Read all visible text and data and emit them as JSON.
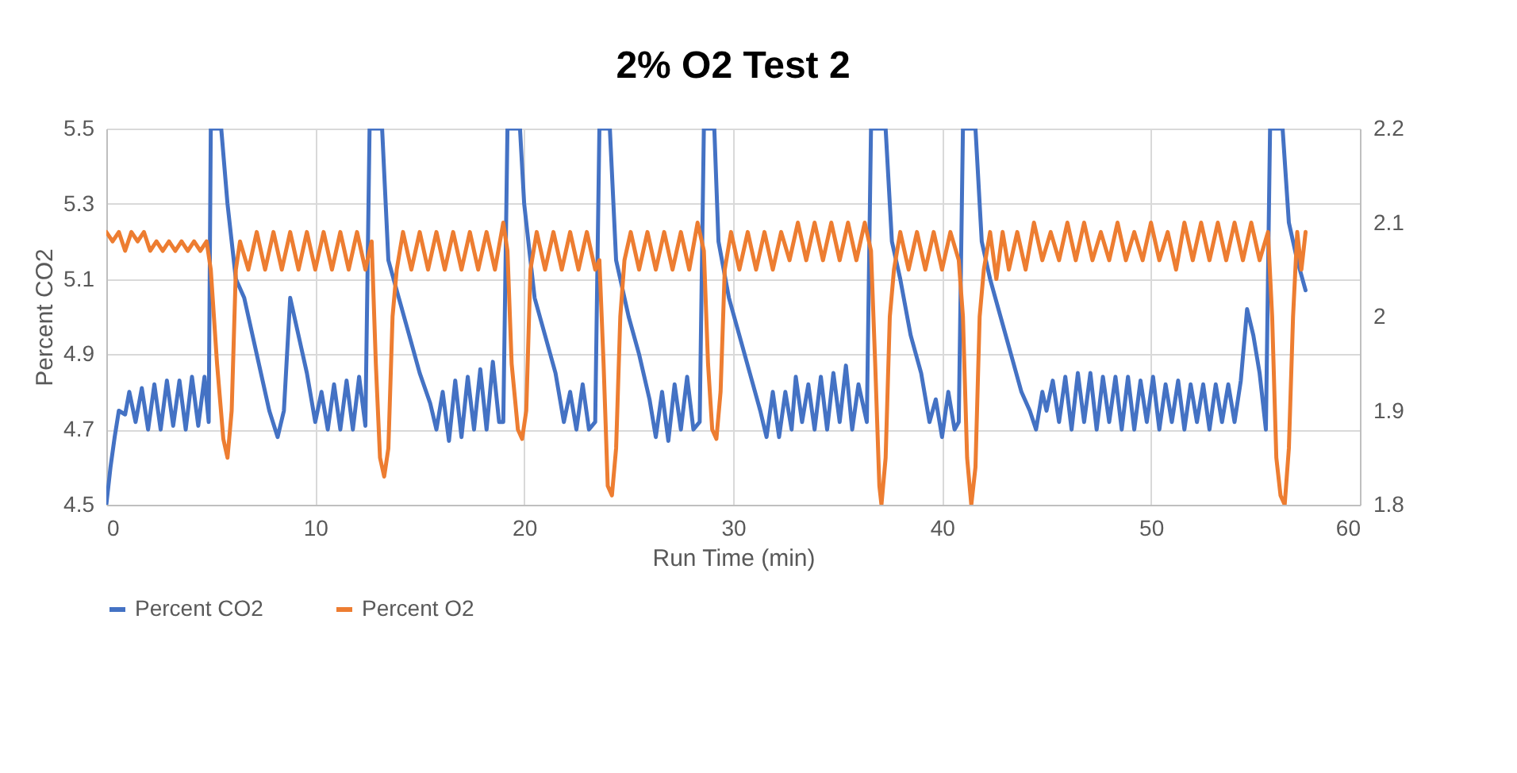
{
  "chart_data": {
    "type": "line",
    "title": "2% O2 Test 2",
    "xlabel": "Run Time (min)",
    "ylabel": "Percent CO2",
    "xlim": [
      0,
      60
    ],
    "xticks": [
      0,
      10,
      20,
      30,
      40,
      50,
      60
    ],
    "ylim": [
      4.5,
      5.5
    ],
    "yticks": [
      4.5,
      4.7,
      4.9,
      5.1,
      5.3,
      5.5
    ],
    "y2lim": [
      1.8,
      2.2
    ],
    "y2ticks": [
      1.8,
      1.9,
      2,
      2.1,
      2.2
    ],
    "grid": true,
    "legend": "bottom",
    "line_style": "solid",
    "series": [
      {
        "name": "Percent CO2",
        "color": "#4472c4",
        "x": [
          0,
          0.2,
          0.4,
          0.6,
          0.9,
          1.1,
          1.4,
          1.7,
          2.0,
          2.3,
          2.6,
          2.9,
          3.2,
          3.5,
          3.8,
          4.1,
          4.4,
          4.7,
          4.9,
          5.0,
          5.5,
          5.8,
          6.2,
          6.6,
          7.0,
          7.4,
          7.8,
          8.2,
          8.5,
          8.8,
          9.2,
          9.6,
          10.0,
          10.3,
          10.6,
          10.9,
          11.2,
          11.5,
          11.8,
          12.1,
          12.4,
          12.6,
          13.2,
          13.5,
          14.0,
          14.5,
          15.0,
          15.5,
          15.8,
          16.1,
          16.4,
          16.7,
          17.0,
          17.3,
          17.6,
          17.9,
          18.2,
          18.5,
          18.8,
          19.0,
          19.2,
          19.8,
          20.0,
          20.5,
          21.0,
          21.5,
          21.9,
          22.2,
          22.5,
          22.8,
          23.1,
          23.4,
          23.6,
          24.1,
          24.4,
          25.0,
          25.5,
          26.0,
          26.3,
          26.6,
          26.9,
          27.2,
          27.5,
          27.8,
          28.1,
          28.4,
          28.6,
          29.1,
          29.3,
          29.8,
          30.3,
          30.8,
          31.3,
          31.6,
          31.9,
          32.2,
          32.5,
          32.8,
          33.0,
          33.3,
          33.6,
          33.9,
          34.2,
          34.5,
          34.8,
          35.1,
          35.4,
          35.7,
          36.0,
          36.4,
          36.6,
          37.3,
          37.6,
          38.0,
          38.5,
          39.0,
          39.4,
          39.7,
          40.0,
          40.3,
          40.6,
          40.8,
          41.0,
          41.6,
          41.9,
          42.3,
          42.8,
          43.3,
          43.8,
          44.2,
          44.5,
          44.8,
          45.0,
          45.3,
          45.6,
          45.9,
          46.2,
          46.5,
          46.8,
          47.1,
          47.4,
          47.7,
          48.0,
          48.3,
          48.6,
          48.9,
          49.2,
          49.5,
          49.8,
          50.1,
          50.4,
          50.7,
          51.0,
          51.3,
          51.6,
          51.9,
          52.2,
          52.5,
          52.8,
          53.1,
          53.4,
          53.7,
          54.0,
          54.3,
          54.6,
          54.9,
          55.2,
          55.5,
          55.7,
          56.3,
          56.6,
          57.0,
          57.4
        ],
        "values": [
          4.5,
          4.6,
          4.68,
          4.75,
          4.74,
          4.8,
          4.72,
          4.81,
          4.7,
          4.82,
          4.7,
          4.83,
          4.71,
          4.83,
          4.7,
          4.84,
          4.71,
          4.84,
          4.72,
          5.5,
          5.5,
          5.3,
          5.1,
          5.05,
          4.95,
          4.85,
          4.75,
          4.68,
          4.75,
          5.05,
          4.95,
          4.85,
          4.72,
          4.8,
          4.7,
          4.82,
          4.7,
          4.83,
          4.7,
          4.84,
          4.71,
          5.5,
          5.5,
          5.15,
          5.05,
          4.95,
          4.85,
          4.77,
          4.7,
          4.8,
          4.67,
          4.83,
          4.68,
          4.84,
          4.7,
          4.86,
          4.7,
          4.88,
          4.72,
          4.72,
          5.5,
          5.5,
          5.3,
          5.05,
          4.95,
          4.85,
          4.72,
          4.8,
          4.7,
          4.82,
          4.7,
          4.72,
          5.5,
          5.5,
          5.15,
          5.0,
          4.9,
          4.78,
          4.68,
          4.8,
          4.67,
          4.82,
          4.7,
          4.84,
          4.7,
          4.72,
          5.5,
          5.5,
          5.2,
          5.05,
          4.95,
          4.85,
          4.75,
          4.68,
          4.8,
          4.68,
          4.8,
          4.7,
          4.84,
          4.72,
          4.82,
          4.7,
          4.84,
          4.7,
          4.85,
          4.72,
          4.87,
          4.7,
          4.82,
          4.72,
          5.5,
          5.5,
          5.2,
          5.1,
          4.95,
          4.85,
          4.72,
          4.78,
          4.68,
          4.8,
          4.7,
          4.72,
          5.5,
          5.5,
          5.2,
          5.1,
          5.0,
          4.9,
          4.8,
          4.75,
          4.7,
          4.8,
          4.75,
          4.83,
          4.72,
          4.84,
          4.7,
          4.85,
          4.72,
          4.85,
          4.7,
          4.84,
          4.72,
          4.84,
          4.7,
          4.84,
          4.7,
          4.83,
          4.72,
          4.84,
          4.7,
          4.82,
          4.72,
          4.83,
          4.7,
          4.82,
          4.72,
          4.82,
          4.7,
          4.82,
          4.72,
          4.82,
          4.72,
          4.83,
          5.02,
          4.95,
          4.85,
          4.7,
          5.5,
          5.5,
          5.25,
          5.15,
          5.07
        ]
      },
      {
        "name": "Percent O2",
        "color": "#ed7d31",
        "axis": "y2",
        "x": [
          0,
          0.3,
          0.6,
          0.9,
          1.2,
          1.5,
          1.8,
          2.1,
          2.4,
          2.7,
          3.0,
          3.3,
          3.6,
          3.9,
          4.2,
          4.5,
          4.8,
          5.0,
          5.3,
          5.6,
          5.8,
          6.0,
          6.2,
          6.4,
          6.8,
          7.2,
          7.6,
          8.0,
          8.4,
          8.8,
          9.2,
          9.6,
          10.0,
          10.4,
          10.8,
          11.2,
          11.6,
          12.0,
          12.4,
          12.7,
          12.9,
          13.1,
          13.3,
          13.5,
          13.7,
          13.9,
          14.2,
          14.6,
          15.0,
          15.4,
          15.8,
          16.2,
          16.6,
          17.0,
          17.4,
          17.8,
          18.2,
          18.6,
          19.0,
          19.2,
          19.4,
          19.7,
          19.9,
          20.1,
          20.3,
          20.6,
          21.0,
          21.4,
          21.8,
          22.2,
          22.6,
          23.0,
          23.4,
          23.6,
          23.8,
          24.0,
          24.2,
          24.4,
          24.6,
          24.8,
          25.1,
          25.5,
          25.9,
          26.3,
          26.7,
          27.1,
          27.5,
          27.9,
          28.3,
          28.6,
          28.8,
          29.0,
          29.2,
          29.4,
          29.6,
          29.9,
          30.3,
          30.7,
          31.1,
          31.5,
          31.9,
          32.3,
          32.7,
          33.1,
          33.5,
          33.9,
          34.3,
          34.7,
          35.1,
          35.5,
          35.9,
          36.3,
          36.6,
          36.8,
          37.0,
          37.1,
          37.3,
          37.5,
          37.7,
          38.0,
          38.4,
          38.8,
          39.2,
          39.6,
          40.0,
          40.4,
          40.8,
          41.0,
          41.2,
          41.4,
          41.6,
          41.8,
          42.0,
          42.3,
          42.6,
          42.9,
          43.2,
          43.6,
          44.0,
          44.4,
          44.8,
          45.2,
          45.6,
          46.0,
          46.4,
          46.8,
          47.2,
          47.6,
          48.0,
          48.4,
          48.8,
          49.2,
          49.6,
          50.0,
          50.4,
          50.8,
          51.2,
          51.6,
          52.0,
          52.4,
          52.8,
          53.2,
          53.6,
          54.0,
          54.4,
          54.8,
          55.2,
          55.6,
          55.8,
          56.0,
          56.2,
          56.4,
          56.6,
          56.8,
          57.0,
          57.2,
          57.4
        ],
        "values": [
          2.09,
          2.08,
          2.09,
          2.07,
          2.09,
          2.08,
          2.09,
          2.07,
          2.08,
          2.07,
          2.08,
          2.07,
          2.08,
          2.07,
          2.08,
          2.07,
          2.08,
          2.05,
          1.95,
          1.87,
          1.85,
          1.9,
          2.05,
          2.08,
          2.05,
          2.09,
          2.05,
          2.09,
          2.05,
          2.09,
          2.05,
          2.09,
          2.05,
          2.09,
          2.05,
          2.09,
          2.05,
          2.09,
          2.05,
          2.08,
          1.95,
          1.85,
          1.83,
          1.86,
          2.0,
          2.05,
          2.09,
          2.05,
          2.09,
          2.05,
          2.09,
          2.05,
          2.09,
          2.05,
          2.09,
          2.05,
          2.09,
          2.05,
          2.1,
          2.07,
          1.95,
          1.88,
          1.87,
          1.9,
          2.05,
          2.09,
          2.05,
          2.09,
          2.05,
          2.09,
          2.05,
          2.09,
          2.05,
          2.06,
          1.95,
          1.82,
          1.81,
          1.86,
          2.0,
          2.06,
          2.09,
          2.05,
          2.09,
          2.05,
          2.09,
          2.05,
          2.09,
          2.05,
          2.1,
          2.07,
          1.95,
          1.88,
          1.87,
          1.92,
          2.05,
          2.09,
          2.05,
          2.09,
          2.05,
          2.09,
          2.05,
          2.09,
          2.06,
          2.1,
          2.06,
          2.1,
          2.06,
          2.1,
          2.06,
          2.1,
          2.06,
          2.1,
          2.07,
          1.95,
          1.82,
          1.8,
          1.85,
          2.0,
          2.05,
          2.09,
          2.05,
          2.09,
          2.05,
          2.09,
          2.05,
          2.09,
          2.06,
          2.0,
          1.85,
          1.8,
          1.84,
          2.0,
          2.05,
          2.09,
          2.04,
          2.09,
          2.05,
          2.09,
          2.05,
          2.1,
          2.06,
          2.09,
          2.06,
          2.1,
          2.06,
          2.1,
          2.06,
          2.09,
          2.06,
          2.1,
          2.06,
          2.09,
          2.06,
          2.1,
          2.06,
          2.09,
          2.05,
          2.1,
          2.06,
          2.1,
          2.06,
          2.1,
          2.06,
          2.1,
          2.06,
          2.1,
          2.06,
          2.09,
          2.0,
          1.85,
          1.81,
          1.8,
          1.86,
          2.0,
          2.09,
          2.05,
          2.09
        ]
      }
    ]
  }
}
